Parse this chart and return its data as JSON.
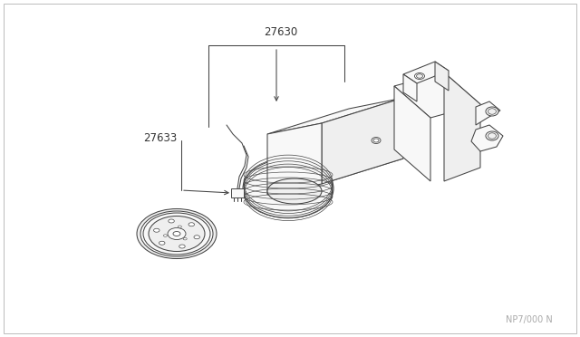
{
  "background_color": "#ffffff",
  "border_color": "#bbbbbb",
  "label_27630": "27630",
  "label_27633": "27633",
  "watermark": "NP7/000 N",
  "line_color": "#444444",
  "text_color": "#333333",
  "label_fontsize": 8.5,
  "watermark_fontsize": 7,
  "lw": 0.75
}
